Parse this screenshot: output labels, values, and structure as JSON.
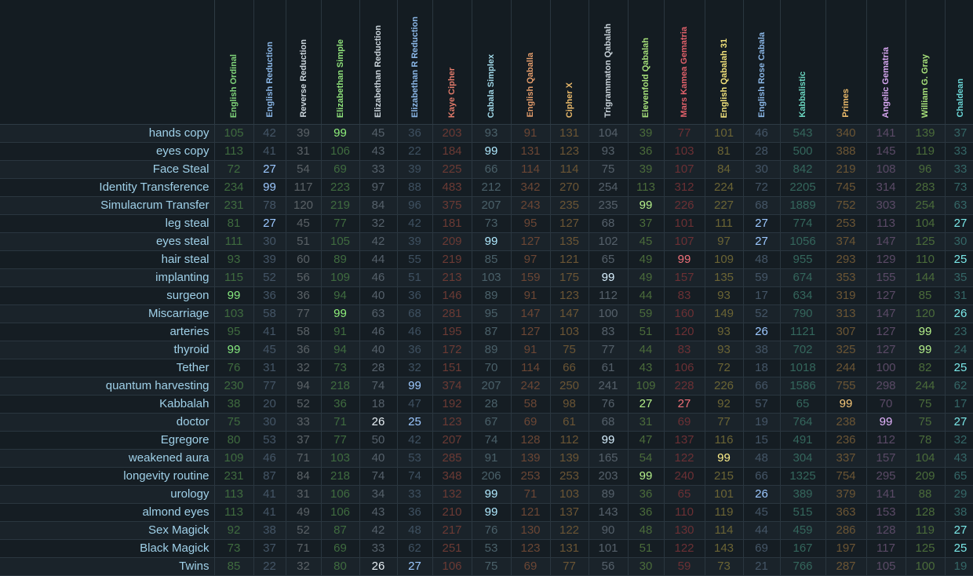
{
  "ciphers": [
    {
      "name": "English Ordinal",
      "color": "#7fd47a",
      "dim": "#3f6b3f",
      "hl": "#86ea7f"
    },
    {
      "name": "English Reduction",
      "color": "#8ab6e6",
      "dim": "#445566",
      "hl": "#9cc8ff"
    },
    {
      "name": "Reverse Reduction",
      "color": "#c9d3da",
      "dim": "#5a6166",
      "hl": "#e6eef3"
    },
    {
      "name": "Elizabethan Simple",
      "color": "#8ee07a",
      "dim": "#3f6b3f",
      "hl": "#8ef07a"
    },
    {
      "name": "Elizabethan Reduction",
      "color": "#c9d3da",
      "dim": "#55606a",
      "hl": "#e6eef3"
    },
    {
      "name": "Elizabethan R Reduction",
      "color": "#8ab6e6",
      "dim": "#3e5060",
      "hl": "#9cc8ff"
    },
    {
      "name": "Kaye Cipher",
      "color": "#e07a6a",
      "dim": "#6b3a34",
      "hl": "#f08a78"
    },
    {
      "name": "Cabala Simplex",
      "color": "#9fd6e6",
      "dim": "#4a6069",
      "hl": "#b0eaff"
    },
    {
      "name": "English Qaballa",
      "color": "#e09a6a",
      "dim": "#6b4634",
      "hl": "#f0a878"
    },
    {
      "name": "Cipher X",
      "color": "#e8b86a",
      "dim": "#6b5534",
      "hl": "#f8c878"
    },
    {
      "name": "Trigrammaton Qabalah",
      "color": "#c9d3da",
      "dim": "#55606a",
      "hl": "#d8f0ff"
    },
    {
      "name": "Elevenfold Qabalah",
      "color": "#a6e07a",
      "dim": "#4a6b3a",
      "hl": "#b4f08a"
    },
    {
      "name": "Mars Kamea Gematria",
      "color": "#e0606a",
      "dim": "#6b3034",
      "hl": "#f07078"
    },
    {
      "name": "English Qabalah 31",
      "color": "#f0e07a",
      "dim": "#6b6434",
      "hl": "#fff08a"
    },
    {
      "name": "English Rose Cabala",
      "color": "#8ab6e6",
      "dim": "#445566",
      "hl": "#9cc8ff"
    },
    {
      "name": "Kabbalistic",
      "color": "#6ad6c0",
      "dim": "#34665c",
      "hl": "#7ae8d0"
    },
    {
      "name": "Primes",
      "color": "#e8b86a",
      "dim": "#6b5534",
      "hl": "#f8c878"
    },
    {
      "name": "Angelic Gematria",
      "color": "#d6a6f0",
      "dim": "#5a4a66",
      "hl": "#e4b4ff"
    },
    {
      "name": "William G. Gray",
      "color": "#a6e07a",
      "dim": "#4a6b3a",
      "hl": "#b4f08a"
    },
    {
      "name": "Chaldean",
      "color": "#6ad6d6",
      "dim": "#346666",
      "hl": "#7ae8e8"
    }
  ],
  "rows": [
    {
      "phrase": "hands copy",
      "values": [
        "105",
        "42",
        "39",
        "99",
        "45",
        "36",
        "203",
        "93",
        "91",
        "131",
        "104",
        "39",
        "77",
        "101",
        "46",
        "543",
        "340",
        "141",
        "139",
        "37"
      ],
      "hl": [
        3
      ]
    },
    {
      "phrase": "eyes copy",
      "values": [
        "113",
        "41",
        "31",
        "106",
        "43",
        "22",
        "184",
        "99",
        "131",
        "123",
        "93",
        "36",
        "103",
        "81",
        "28",
        "500",
        "388",
        "145",
        "119",
        "33"
      ],
      "hl": [
        7
      ]
    },
    {
      "phrase": "Face Steal",
      "values": [
        "72",
        "27",
        "54",
        "69",
        "33",
        "39",
        "225",
        "66",
        "114",
        "114",
        "75",
        "39",
        "107",
        "84",
        "30",
        "842",
        "219",
        "108",
        "96",
        "33"
      ],
      "hl": [
        1
      ]
    },
    {
      "phrase": "Identity Transference",
      "values": [
        "234",
        "99",
        "117",
        "223",
        "97",
        "88",
        "483",
        "212",
        "342",
        "270",
        "254",
        "113",
        "312",
        "224",
        "72",
        "2205",
        "745",
        "314",
        "283",
        "73"
      ],
      "hl": [
        1
      ]
    },
    {
      "phrase": "Simulacrum Transfer",
      "values": [
        "231",
        "78",
        "120",
        "219",
        "84",
        "96",
        "375",
        "207",
        "243",
        "235",
        "235",
        "99",
        "226",
        "227",
        "68",
        "1889",
        "752",
        "303",
        "254",
        "63"
      ],
      "hl": [
        11
      ]
    },
    {
      "phrase": "leg steal",
      "values": [
        "81",
        "27",
        "45",
        "77",
        "32",
        "42",
        "181",
        "73",
        "95",
        "127",
        "68",
        "37",
        "101",
        "111",
        "27",
        "774",
        "253",
        "113",
        "104",
        "27"
      ],
      "hl": [
        1,
        14,
        19
      ]
    },
    {
      "phrase": "eyes steal",
      "values": [
        "111",
        "30",
        "51",
        "105",
        "42",
        "39",
        "209",
        "99",
        "127",
        "135",
        "102",
        "45",
        "107",
        "97",
        "27",
        "1056",
        "374",
        "147",
        "125",
        "30"
      ],
      "hl": [
        7,
        14
      ]
    },
    {
      "phrase": "hair steal",
      "values": [
        "93",
        "39",
        "60",
        "89",
        "44",
        "55",
        "219",
        "85",
        "97",
        "121",
        "65",
        "49",
        "99",
        "109",
        "48",
        "955",
        "293",
        "129",
        "110",
        "25"
      ],
      "hl": [
        12,
        19
      ]
    },
    {
      "phrase": "implanting",
      "values": [
        "115",
        "52",
        "56",
        "109",
        "46",
        "51",
        "213",
        "103",
        "159",
        "175",
        "99",
        "49",
        "157",
        "135",
        "59",
        "674",
        "353",
        "155",
        "144",
        "35"
      ],
      "hl": [
        10
      ]
    },
    {
      "phrase": "surgeon",
      "values": [
        "99",
        "36",
        "36",
        "94",
        "40",
        "36",
        "146",
        "89",
        "91",
        "123",
        "112",
        "44",
        "83",
        "93",
        "17",
        "634",
        "319",
        "127",
        "85",
        "31"
      ],
      "hl": [
        0
      ]
    },
    {
      "phrase": "Miscarriage",
      "values": [
        "103",
        "58",
        "77",
        "99",
        "63",
        "68",
        "281",
        "95",
        "147",
        "147",
        "100",
        "59",
        "160",
        "149",
        "52",
        "790",
        "313",
        "147",
        "120",
        "26"
      ],
      "hl": [
        3,
        19
      ]
    },
    {
      "phrase": "arteries",
      "values": [
        "95",
        "41",
        "58",
        "91",
        "46",
        "46",
        "195",
        "87",
        "127",
        "103",
        "83",
        "51",
        "120",
        "93",
        "26",
        "1121",
        "307",
        "127",
        "99",
        "23"
      ],
      "hl": [
        14,
        18
      ]
    },
    {
      "phrase": "thyroid",
      "values": [
        "99",
        "45",
        "36",
        "94",
        "40",
        "36",
        "172",
        "89",
        "91",
        "75",
        "77",
        "44",
        "83",
        "93",
        "38",
        "702",
        "325",
        "127",
        "99",
        "24"
      ],
      "hl": [
        0,
        18
      ]
    },
    {
      "phrase": "Tether",
      "values": [
        "76",
        "31",
        "32",
        "73",
        "28",
        "32",
        "151",
        "70",
        "114",
        "66",
        "61",
        "43",
        "106",
        "72",
        "18",
        "1018",
        "244",
        "100",
        "82",
        "25"
      ],
      "hl": [
        19
      ]
    },
    {
      "phrase": "quantum harvesting",
      "values": [
        "230",
        "77",
        "94",
        "218",
        "74",
        "99",
        "374",
        "207",
        "242",
        "250",
        "241",
        "109",
        "228",
        "226",
        "66",
        "1586",
        "755",
        "298",
        "244",
        "62"
      ],
      "hl": [
        5
      ]
    },
    {
      "phrase": "Kabbalah",
      "values": [
        "38",
        "20",
        "52",
        "36",
        "18",
        "47",
        "192",
        "28",
        "58",
        "98",
        "76",
        "27",
        "27",
        "92",
        "57",
        "65",
        "99",
        "70",
        "75",
        "17"
      ],
      "hl": [
        11,
        12,
        16
      ]
    },
    {
      "phrase": "doctor",
      "values": [
        "75",
        "30",
        "33",
        "71",
        "26",
        "25",
        "123",
        "67",
        "69",
        "61",
        "68",
        "31",
        "69",
        "77",
        "19",
        "764",
        "238",
        "99",
        "75",
        "27"
      ],
      "hl": [
        4,
        5,
        17,
        19
      ]
    },
    {
      "phrase": "Egregore",
      "values": [
        "80",
        "53",
        "37",
        "77",
        "50",
        "42",
        "207",
        "74",
        "128",
        "112",
        "99",
        "47",
        "137",
        "116",
        "15",
        "491",
        "236",
        "112",
        "78",
        "32"
      ],
      "hl": [
        10
      ]
    },
    {
      "phrase": "weakened aura",
      "values": [
        "109",
        "46",
        "71",
        "103",
        "40",
        "53",
        "285",
        "91",
        "139",
        "139",
        "165",
        "54",
        "122",
        "99",
        "48",
        "304",
        "337",
        "157",
        "104",
        "43"
      ],
      "hl": [
        13
      ]
    },
    {
      "phrase": "longevity routine",
      "values": [
        "231",
        "87",
        "84",
        "218",
        "74",
        "74",
        "348",
        "206",
        "253",
        "253",
        "203",
        "99",
        "240",
        "215",
        "66",
        "1325",
        "754",
        "295",
        "209",
        "65"
      ],
      "hl": [
        11
      ]
    },
    {
      "phrase": "urology",
      "values": [
        "113",
        "41",
        "31",
        "106",
        "34",
        "33",
        "132",
        "99",
        "71",
        "103",
        "89",
        "36",
        "65",
        "101",
        "26",
        "389",
        "379",
        "141",
        "88",
        "29"
      ],
      "hl": [
        7,
        14
      ]
    },
    {
      "phrase": "almond eyes",
      "values": [
        "113",
        "41",
        "49",
        "106",
        "43",
        "36",
        "210",
        "99",
        "121",
        "137",
        "143",
        "36",
        "110",
        "119",
        "45",
        "515",
        "363",
        "153",
        "128",
        "38"
      ],
      "hl": [
        7
      ]
    },
    {
      "phrase": "Sex Magick",
      "values": [
        "92",
        "38",
        "52",
        "87",
        "42",
        "48",
        "217",
        "76",
        "130",
        "122",
        "90",
        "48",
        "130",
        "114",
        "44",
        "459",
        "286",
        "128",
        "119",
        "27"
      ],
      "hl": [
        19
      ]
    },
    {
      "phrase": "Black Magick",
      "values": [
        "73",
        "37",
        "71",
        "69",
        "33",
        "62",
        "251",
        "53",
        "123",
        "131",
        "101",
        "51",
        "122",
        "143",
        "69",
        "167",
        "197",
        "117",
        "125",
        "25"
      ],
      "hl": [
        19
      ]
    },
    {
      "phrase": "Twins",
      "values": [
        "85",
        "22",
        "32",
        "80",
        "26",
        "27",
        "106",
        "75",
        "69",
        "77",
        "56",
        "30",
        "59",
        "73",
        "21",
        "766",
        "287",
        "105",
        "100",
        "19"
      ],
      "hl": [
        4,
        5
      ]
    }
  ]
}
